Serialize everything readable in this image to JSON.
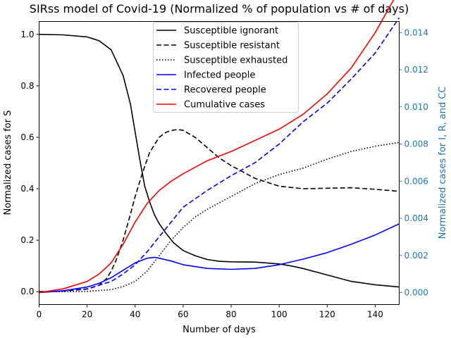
{
  "chart_data": {
    "type": "line",
    "title": "SIRss model of Covid-19 (Normalized % of population vs # of days)",
    "xlabel": "Number of days",
    "ylabel": "Normalized cases for S",
    "ylabel_right": "Normalized cases for I, R, and CC",
    "xlim": [
      0,
      150
    ],
    "ylim": [
      -0.05,
      1.05
    ],
    "ylim_right": [
      -0.000645,
      0.0146
    ],
    "x_ticks": [
      0,
      20,
      40,
      60,
      80,
      100,
      120,
      140
    ],
    "y_ticks": [
      0.0,
      0.2,
      0.4,
      0.6,
      0.8,
      1.0
    ],
    "y_ticks_right": [
      0.0,
      0.002,
      0.004,
      0.006,
      0.008,
      0.01,
      0.012,
      0.014
    ],
    "x_tick_labels": [
      "0",
      "20",
      "40",
      "60",
      "80",
      "100",
      "120",
      "140"
    ],
    "y_tick_labels": [
      "0.0",
      "0.2",
      "0.4",
      "0.6",
      "0.8",
      "1.0"
    ],
    "y_tick_labels_right": [
      "0.000",
      "0.002",
      "0.004",
      "0.006",
      "0.008",
      "0.010",
      "0.012",
      "0.014"
    ],
    "legend_position": "top-center",
    "right_axis_color": "#1f77b4",
    "series": [
      {
        "name": "Susceptible ignorant",
        "axis": "left",
        "color": "#000000",
        "style": "solid",
        "x": [
          0,
          10,
          20,
          25,
          30,
          35,
          38,
          40,
          42,
          44,
          46,
          48,
          50,
          53,
          56,
          60,
          65,
          70,
          75,
          80,
          90,
          100,
          105,
          110,
          120,
          130,
          140,
          150
        ],
        "y": [
          1.0,
          0.998,
          0.99,
          0.975,
          0.94,
          0.84,
          0.73,
          0.62,
          0.51,
          0.41,
          0.35,
          0.3,
          0.265,
          0.225,
          0.19,
          0.16,
          0.14,
          0.125,
          0.118,
          0.116,
          0.115,
          0.108,
          0.1,
          0.09,
          0.065,
          0.04,
          0.027,
          0.018
        ]
      },
      {
        "name": "Susceptible resistant",
        "axis": "left",
        "color": "#000000",
        "style": "dashed",
        "x": [
          0,
          10,
          20,
          25,
          28,
          30,
          32,
          35,
          38,
          40,
          43,
          46,
          50,
          53,
          56,
          58,
          60,
          65,
          70,
          75,
          80,
          90,
          100,
          110,
          120,
          130,
          140,
          150
        ],
        "y": [
          0.0,
          0.002,
          0.01,
          0.025,
          0.05,
          0.08,
          0.12,
          0.2,
          0.3,
          0.37,
          0.46,
          0.54,
          0.6,
          0.62,
          0.628,
          0.63,
          0.627,
          0.6,
          0.56,
          0.52,
          0.49,
          0.44,
          0.41,
          0.4,
          0.402,
          0.404,
          0.398,
          0.39
        ]
      },
      {
        "name": "Susceptible exhausted",
        "axis": "left",
        "color": "#000000",
        "style": "dotted",
        "x": [
          0,
          10,
          20,
          30,
          35,
          40,
          45,
          50,
          55,
          60,
          65,
          70,
          80,
          90,
          100,
          110,
          120,
          130,
          140,
          150
        ],
        "y": [
          0.0,
          0.0,
          0.001,
          0.008,
          0.02,
          0.04,
          0.08,
          0.14,
          0.2,
          0.25,
          0.29,
          0.32,
          0.37,
          0.42,
          0.455,
          0.48,
          0.515,
          0.545,
          0.565,
          0.58
        ]
      },
      {
        "name": "Infected people",
        "axis": "right",
        "color": "#0000ff",
        "style": "solid",
        "x": [
          0,
          10,
          20,
          25,
          30,
          35,
          40,
          45,
          48,
          50,
          55,
          60,
          70,
          80,
          90,
          100,
          110,
          120,
          130,
          140,
          150
        ],
        "y": [
          0.0,
          0.0001,
          0.0003,
          0.0005,
          0.0008,
          0.0012,
          0.0016,
          0.00185,
          0.0019,
          0.00185,
          0.0017,
          0.0015,
          0.0013,
          0.00125,
          0.0013,
          0.0015,
          0.0018,
          0.00215,
          0.0026,
          0.0031,
          0.0037
        ]
      },
      {
        "name": "Recovered people",
        "axis": "right",
        "color": "#0000ff",
        "style": "dashed",
        "x": [
          0,
          10,
          20,
          30,
          35,
          40,
          45,
          50,
          55,
          60,
          70,
          80,
          90,
          100,
          110,
          120,
          130,
          140,
          150
        ],
        "y": [
          0.0,
          0.0001,
          0.0002,
          0.0006,
          0.001,
          0.0015,
          0.0022,
          0.003,
          0.0038,
          0.0046,
          0.0055,
          0.0063,
          0.007,
          0.008,
          0.0092,
          0.0102,
          0.0115,
          0.0129,
          0.0148
        ]
      },
      {
        "name": "Cumulative cases",
        "axis": "right",
        "color": "#ff0000",
        "style": "solid",
        "x": [
          0,
          10,
          20,
          25,
          30,
          35,
          40,
          45,
          50,
          55,
          60,
          70,
          80,
          90,
          100,
          110,
          120,
          130,
          140,
          150
        ],
        "y": [
          0.0,
          0.0002,
          0.0006,
          0.001,
          0.0016,
          0.0026,
          0.0038,
          0.0048,
          0.0055,
          0.006,
          0.0064,
          0.0071,
          0.0076,
          0.0082,
          0.0088,
          0.0096,
          0.0107,
          0.0121,
          0.014,
          0.0163
        ]
      }
    ]
  }
}
